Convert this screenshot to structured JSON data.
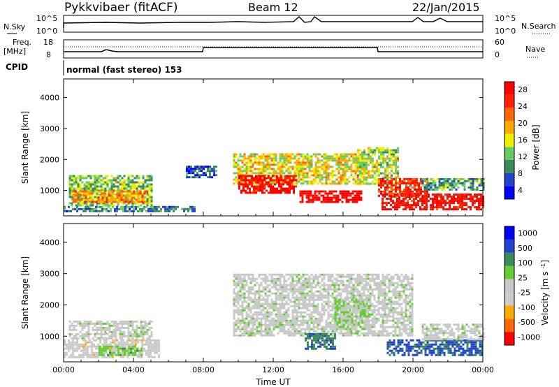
{
  "header": {
    "title": "Pykkvibaer (fitACF)",
    "beam": "Beam 12",
    "date": "22/Jan/2015"
  },
  "top_panels": {
    "nsky_label": "N.Sky",
    "nsky_ticks": [
      "10^5",
      "10^0"
    ],
    "nsearch_label": "N.Search",
    "nsearch_ticks": [
      "10^5",
      "10^0"
    ],
    "freq_label": "Freq.",
    "freq_unit": "[MHz]",
    "freq_ticks": [
      "18",
      "8"
    ],
    "nave_label": "Nave",
    "nave_ticks": [
      "60",
      "0"
    ],
    "cpid_label": "CPID",
    "cpid_text": "normal (fast stereo) 153"
  },
  "colors": {
    "power_scale": [
      "#0000ff",
      "#2244cc",
      "#3a8a5a",
      "#66cc66",
      "#eeee00",
      "#ffaa00",
      "#ff6600",
      "#ff2200",
      "#ff0000"
    ],
    "velocity_scale": [
      "#ff0000",
      "#ff6600",
      "#ffaa00",
      "#cccccc",
      "#c8c8c8",
      "#66cc33",
      "#3a8a5a",
      "#2244cc",
      "#0000ff"
    ]
  },
  "chart_data": [
    {
      "type": "heatmap",
      "title": "",
      "xlabel": "Time UT",
      "ylabel": "Slant Range [km]",
      "x_ticks": [
        "00:00",
        "04:00",
        "08:00",
        "12:00",
        "16:00",
        "20:00",
        "00:00"
      ],
      "y_ticks": [
        "1000",
        "2000",
        "3000",
        "4000"
      ],
      "xlim": [
        0,
        24
      ],
      "ylim": [
        180,
        4600
      ],
      "colorbar": {
        "label": "Power [dB]",
        "ticks": [
          "28",
          "24",
          "20",
          "16",
          "12",
          "8",
          "4"
        ],
        "range": [
          0,
          30
        ]
      },
      "regions": [
        {
          "t": [
            0.3,
            5.0
          ],
          "r": [
            500,
            1500
          ],
          "value": 12
        },
        {
          "t": [
            0.5,
            4.8
          ],
          "r": [
            650,
            1000
          ],
          "value": 20
        },
        {
          "t": [
            0.0,
            7.5
          ],
          "r": [
            300,
            500
          ],
          "value": 8
        },
        {
          "t": [
            7.0,
            8.7
          ],
          "r": [
            1400,
            1800
          ],
          "value": 6
        },
        {
          "t": [
            9.7,
            17.2
          ],
          "r": [
            1200,
            2200
          ],
          "value": 16
        },
        {
          "t": [
            10.0,
            13.3
          ],
          "r": [
            900,
            1500
          ],
          "value": 28
        },
        {
          "t": [
            13.5,
            17.0
          ],
          "r": [
            600,
            1000
          ],
          "value": 30
        },
        {
          "t": [
            16.8,
            19.2
          ],
          "r": [
            1200,
            2400
          ],
          "value": 14
        },
        {
          "t": [
            18.0,
            20.8
          ],
          "r": [
            800,
            1400
          ],
          "value": 25
        },
        {
          "t": [
            18.2,
            24.0
          ],
          "r": [
            400,
            900
          ],
          "value": 28
        },
        {
          "t": [
            20.5,
            24.0
          ],
          "r": [
            1000,
            1400
          ],
          "value": 10
        }
      ]
    },
    {
      "type": "heatmap",
      "title": "",
      "xlabel": "Time UT",
      "ylabel": "Slant Range [km]",
      "x_ticks": [
        "00:00",
        "04:00",
        "08:00",
        "12:00",
        "16:00",
        "20:00",
        "00:00"
      ],
      "y_ticks": [
        "1000",
        "2000",
        "3000",
        "4000"
      ],
      "xlim": [
        0,
        24
      ],
      "ylim": [
        180,
        4600
      ],
      "colorbar": {
        "label": "Velocity [m s^-1]",
        "ticks": [
          "1000",
          "500",
          "100",
          "25",
          "-25",
          "-100",
          "-500",
          "-1000"
        ],
        "range": [
          -1000,
          1000
        ]
      },
      "regions": [
        {
          "t": [
            0.3,
            5.0
          ],
          "r": [
            900,
            1500
          ],
          "value": 0
        },
        {
          "t": [
            0.0,
            5.5
          ],
          "r": [
            300,
            900
          ],
          "value": -200
        },
        {
          "t": [
            2.0,
            4.5
          ],
          "r": [
            400,
            700
          ],
          "value": 200
        },
        {
          "t": [
            9.7,
            20.0
          ],
          "r": [
            1000,
            3000
          ],
          "value": 0
        },
        {
          "t": [
            13.8,
            15.5
          ],
          "r": [
            600,
            1100
          ],
          "value": 500
        },
        {
          "t": [
            15.5,
            17.5
          ],
          "r": [
            1200,
            2200
          ],
          "value": 100
        },
        {
          "t": [
            18.5,
            24.0
          ],
          "r": [
            400,
            900
          ],
          "value": 600
        },
        {
          "t": [
            20.5,
            24.0
          ],
          "r": [
            900,
            1400
          ],
          "value": 0
        }
      ]
    }
  ]
}
